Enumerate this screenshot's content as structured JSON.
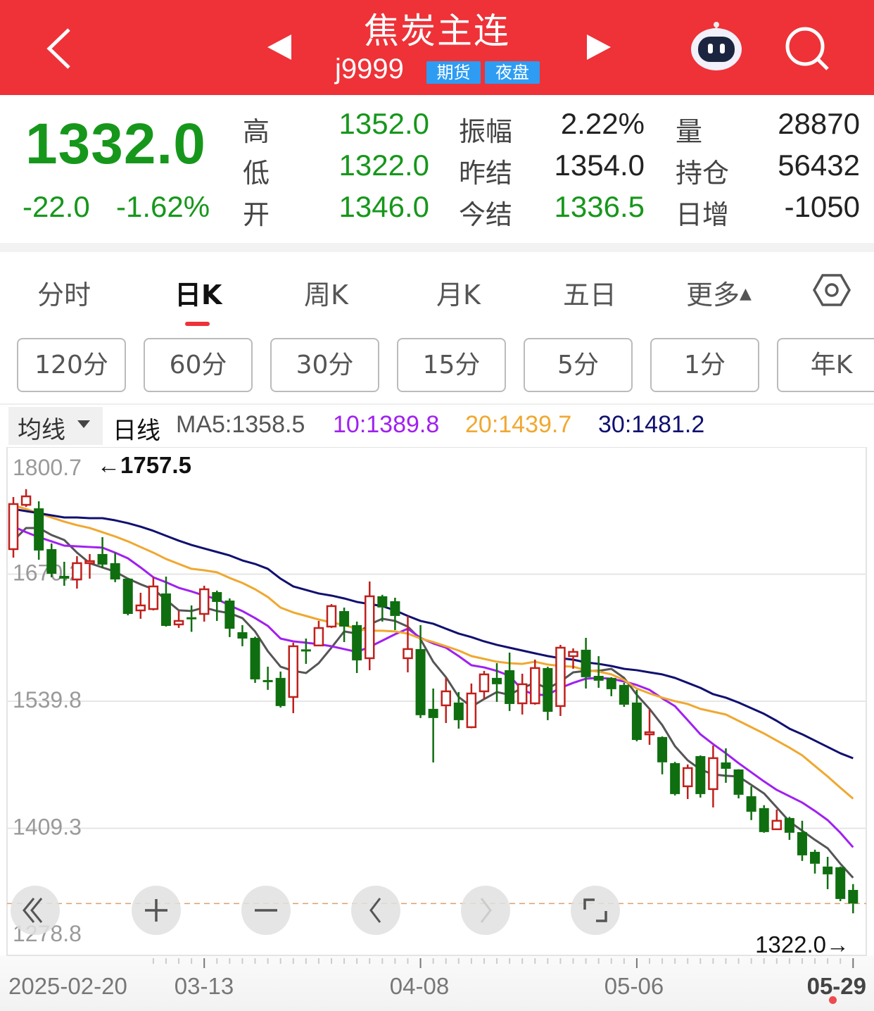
{
  "header": {
    "title": "焦炭主连",
    "code": "j9999",
    "badges": [
      "期货",
      "夜盘"
    ],
    "icons": [
      "back-chevron-icon",
      "prev-contract-icon",
      "next-contract-icon",
      "robot-assistant-icon",
      "search-icon"
    ]
  },
  "quote": {
    "price": "1332.0",
    "change": "-22.0",
    "change_pct": "-1.62%",
    "stats": [
      {
        "label": "高",
        "value": "1352.0",
        "color": "#16971b"
      },
      {
        "label": "低",
        "value": "1322.0",
        "color": "#16971b"
      },
      {
        "label": "开",
        "value": "1346.0",
        "color": "#16971b"
      },
      {
        "label": "振幅",
        "value": "2.22%",
        "color": "#222222"
      },
      {
        "label": "昨结",
        "value": "1354.0",
        "color": "#222222"
      },
      {
        "label": "今结",
        "value": "1336.5",
        "color": "#16971b"
      },
      {
        "label": "量",
        "value": "28870",
        "color": "#222222"
      },
      {
        "label": "持仓",
        "value": "56432",
        "color": "#222222"
      },
      {
        "label": "日增",
        "value": "-1050",
        "color": "#222222"
      }
    ]
  },
  "tabs": {
    "items": [
      "分时",
      "日K",
      "周K",
      "月K",
      "五日",
      "更多"
    ],
    "active": "日K",
    "more_arrow": "▲",
    "accent": "#ee3238"
  },
  "periods": [
    "120分",
    "60分",
    "30分",
    "15分",
    "5分",
    "1分",
    "年K"
  ],
  "ma_bar": {
    "selector": "均线",
    "kline_type": "日线",
    "ma5": "MA5:1358.5",
    "ma10": "10:1389.8",
    "ma20": "20:1439.7",
    "ma30": "30:1481.2",
    "colors": {
      "ma5": "#555555",
      "ma10": "#a020f0",
      "ma20": "#f0a830",
      "ma30": "#101070"
    }
  },
  "controls": [
    "rewind-icon",
    "zoom-in-icon",
    "zoom-out-icon",
    "scroll-left-icon",
    "scroll-right-icon",
    "fullscreen-icon"
  ],
  "chart_data": {
    "type": "candlestick",
    "ylim": [
      1278.8,
      1800.7
    ],
    "y_ticks": [
      "1800.7",
      "1670.2",
      "1539.8",
      "1409.3",
      "1278.8"
    ],
    "x_ticks": [
      "2025-02-20",
      "03-13",
      "04-08",
      "05-06",
      "05-29"
    ],
    "grid": true,
    "high_marker": "←1757.5",
    "low_marker": "1322.0→",
    "last_price": 1332.0,
    "up_color": "#c0201c",
    "down_color": "#0f6e0f",
    "candles_ohlc": [
      [
        1695.9,
        1749.4,
        1687.2,
        1742.2
      ],
      [
        1741.4,
        1757.5,
        1739.3,
        1750.1
      ],
      [
        1737.8,
        1745.0,
        1685.0,
        1694.5
      ],
      [
        1695.9,
        1701.7,
        1667.0,
        1670.6
      ],
      [
        1668.4,
        1682.9,
        1658.3,
        1665.6
      ],
      [
        1664.8,
        1688.7,
        1655.4,
        1681.5
      ],
      [
        1681.5,
        1690.9,
        1665.6,
        1683.6
      ],
      [
        1690.9,
        1708.2,
        1676.4,
        1680.0
      ],
      [
        1681.5,
        1692.3,
        1662.0,
        1664.8
      ],
      [
        1665.6,
        1666.0,
        1628.0,
        1629.4
      ],
      [
        1633.0,
        1651.1,
        1624.4,
        1638.1
      ],
      [
        1634.4,
        1667.0,
        1633.0,
        1657.6
      ],
      [
        1650.4,
        1667.7,
        1616.4,
        1617.1
      ],
      [
        1618.6,
        1632.3,
        1615.0,
        1622.2
      ],
      [
        1626.0,
        1638.1,
        1611.0,
        1624.0
      ],
      [
        1629.4,
        1658.3,
        1621.5,
        1654.7
      ],
      [
        1651.8,
        1653.3,
        1622.2,
        1641.7
      ],
      [
        1643.1,
        1645.3,
        1605.6,
        1614.2
      ],
      [
        1610.6,
        1617.9,
        1596.2,
        1604.1
      ],
      [
        1604.8,
        1606.0,
        1558.6,
        1562.2
      ],
      [
        1561.5,
        1575.2,
        1551.4,
        1559.4
      ],
      [
        1563.7,
        1570.2,
        1533.3,
        1534.8
      ],
      [
        1544.1,
        1599.8,
        1527.5,
        1596.2
      ],
      [
        1593.0,
        1604.1,
        1578.1,
        1591.0
      ],
      [
        1597.0,
        1622.2,
        1596.2,
        1614.9
      ],
      [
        1616.4,
        1639.5,
        1615.0,
        1637.4
      ],
      [
        1632.3,
        1635.9,
        1600.5,
        1616.4
      ],
      [
        1617.9,
        1621.5,
        1568.7,
        1581.7
      ],
      [
        1583.9,
        1662.7,
        1571.6,
        1647.5
      ],
      [
        1647.5,
        1649.0,
        1621.5,
        1636.0
      ],
      [
        1642.4,
        1646.0,
        1612.8,
        1627.3
      ],
      [
        1583.9,
        1627.3,
        1569.4,
        1593.3
      ],
      [
        1593.3,
        1617.9,
        1522.5,
        1525.4
      ],
      [
        1531.9,
        1552.8,
        1476.9,
        1522.5
      ],
      [
        1535.5,
        1563.7,
        1517.4,
        1549.9
      ],
      [
        1538.4,
        1549.2,
        1511.6,
        1520.3
      ],
      [
        1513.1,
        1557.9,
        1512.0,
        1547.7
      ],
      [
        1549.9,
        1570.9,
        1542.0,
        1567.3
      ],
      [
        1563.7,
        1578.8,
        1539.1,
        1557.2
      ],
      [
        1571.6,
        1589.7,
        1529.7,
        1536.9
      ],
      [
        1537.6,
        1568.0,
        1526.1,
        1557.2
      ],
      [
        1537.6,
        1582.5,
        1536.2,
        1573.8
      ],
      [
        1573.8,
        1575.2,
        1520.3,
        1528.9
      ],
      [
        1534.8,
        1597.6,
        1524.6,
        1594.7
      ],
      [
        1586.0,
        1594.0,
        1573.1,
        1590.4
      ],
      [
        1592.6,
        1604.8,
        1552.8,
        1564.4
      ],
      [
        1565.8,
        1586.0,
        1553.5,
        1560.8
      ],
      [
        1563.7,
        1564.4,
        1544.9,
        1552.1
      ],
      [
        1556.5,
        1558.6,
        1534.0,
        1536.2
      ],
      [
        1538.4,
        1551.4,
        1498.6,
        1500.0
      ],
      [
        1505.7,
        1531.1,
        1495.0,
        1507.9
      ],
      [
        1503.0,
        1503.7,
        1464.7,
        1477.0
      ],
      [
        1476.2,
        1477.5,
        1443.0,
        1444.4
      ],
      [
        1452.4,
        1474.8,
        1439.3,
        1471.1
      ],
      [
        1483.4,
        1484.1,
        1440.8,
        1444.4
      ],
      [
        1449.5,
        1494.3,
        1430.7,
        1481.3
      ],
      [
        1476.9,
        1491.4,
        1456.0,
        1470.4
      ],
      [
        1469.7,
        1470.0,
        1440.0,
        1443.7
      ],
      [
        1442.2,
        1452.4,
        1417.7,
        1426.3
      ],
      [
        1430.0,
        1433.0,
        1404.7,
        1405.4
      ],
      [
        1408.3,
        1428.5,
        1407.6,
        1417.0
      ],
      [
        1419.8,
        1421.0,
        1397.4,
        1404.7
      ],
      [
        1405.4,
        1417.0,
        1375.8,
        1381.5
      ],
      [
        1385.1,
        1387.3,
        1362.8,
        1372.9
      ],
      [
        1370.0,
        1380.0,
        1346.8,
        1362.0
      ],
      [
        1369.3,
        1370.0,
        1334.5,
        1336.7
      ],
      [
        1346.0,
        1352.0,
        1322.0,
        1332.0
      ]
    ],
    "series": [
      {
        "name": "MA5",
        "color": "#555555",
        "values": [
          1704.6,
          1717.6,
          1717.6,
          1710.4,
          1705.3,
          1692.3,
          1681.5,
          1677.1,
          1672.8,
          1665.6,
          1659.8,
          1654.8,
          1643.9,
          1633.1,
          1632.4,
          1635.9,
          1632.4,
          1630.1,
          1625.1,
          1611.4,
          1591.1,
          1575.2,
          1570.9,
          1568.7,
          1578.8,
          1594.7,
          1611.4,
          1609.2,
          1618.6,
          1624.4,
          1622.2,
          1616.4,
          1603.4,
          1580.3,
          1564.4,
          1544.1,
          1534,
          1542,
          1549.2,
          1546.3,
          1553.5,
          1558.6,
          1552.8,
          1560,
          1569.4,
          1570.9,
          1570.9,
          1573,
          1563.7,
          1546.3,
          1531.9,
          1515.2,
          1493.6,
          1479.1,
          1469.7,
          1464.6,
          1463.2,
          1462.5,
          1453.8,
          1445.1,
          1430.7,
          1416.2,
          1406.8,
          1397.4,
          1388.8,
          1372.9,
          1358.5
        ]
      },
      {
        "name": "10",
        "color": "#a020f0",
        "values": [
          1719.0,
          1713.3,
          1708.2,
          1703.9,
          1699.5,
          1698.8,
          1698.1,
          1697.4,
          1692.3,
          1686.5,
          1677.1,
          1667.0,
          1661.9,
          1656.2,
          1652.5,
          1648.2,
          1644.6,
          1638.1,
          1632.3,
          1625.1,
          1617.1,
          1604.1,
          1601.2,
          1599.8,
          1598.3,
          1596.2,
          1593.3,
          1590.4,
          1595.5,
          1602.0,
          1608.5,
          1614.2,
          1604.8,
          1599.1,
          1594.7,
          1586.1,
          1576.7,
          1574.5,
          1570.9,
          1565.8,
          1551.4,
          1546.3,
          1546.3,
          1553.5,
          1558.6,
          1562.9,
          1563.7,
          1562.9,
          1560.0,
          1556.4,
          1551.4,
          1542.7,
          1534.7,
          1520.3,
          1505.8,
          1495.7,
          1486.3,
          1476.2,
          1466.8,
          1457.4,
          1448.7,
          1442.2,
          1435.7,
          1427.1,
          1417.7,
          1404.7,
          1389.8
        ]
      },
      {
        "name": "20",
        "color": "#f0a830",
        "values": [
          1740.7,
          1737.1,
          1732.8,
          1728.4,
          1724.1,
          1720.5,
          1717.6,
          1713.3,
          1708.9,
          1703.9,
          1698.1,
          1692.3,
          1685.8,
          1680.7,
          1675.7,
          1674.2,
          1672.1,
          1666.3,
          1661.2,
          1654.7,
          1646.8,
          1635.9,
          1630.9,
          1627.3,
          1623.6,
          1620.7,
          1617.9,
          1614.2,
          1612.1,
          1612.1,
          1611.4,
          1609.2,
          1604.1,
          1600.5,
          1596.2,
          1591.8,
          1586.1,
          1583.2,
          1580.3,
          1578.8,
          1578.1,
          1580.3,
          1577.4,
          1575.9,
          1575.2,
          1571.6,
          1570.2,
          1567.3,
          1561.5,
          1552.8,
          1547.8,
          1543.4,
          1539.8,
          1536.9,
          1531.9,
          1529.0,
          1526.1,
          1519.6,
          1513.1,
          1506.6,
          1499.3,
          1492.1,
          1484.2,
          1473.3,
          1462.5,
          1450.9,
          1439.7
        ]
      },
      {
        "name": "30",
        "color": "#101070",
        "values": [
          1737.1,
          1734.9,
          1732.8,
          1730.6,
          1728.4,
          1728.4,
          1727.7,
          1727.7,
          1725.5,
          1722.6,
          1719.0,
          1714.7,
          1709.6,
          1704.6,
          1700.2,
          1696.6,
          1693.0,
          1689.4,
          1684.3,
          1680.7,
          1675.7,
          1665.6,
          1657.6,
          1654.0,
          1650.4,
          1648.2,
          1645.3,
          1641.7,
          1639.5,
          1637.4,
          1633.0,
          1627.3,
          1622.2,
          1619.3,
          1614.2,
          1609.2,
          1605.6,
          1601.2,
          1597.6,
          1594.7,
          1591.8,
          1588.9,
          1586.1,
          1583.9,
          1582.4,
          1579.6,
          1578.1,
          1575.9,
          1573.0,
          1571.6,
          1569.4,
          1567.3,
          1563.7,
          1558.6,
          1553.5,
          1547.0,
          1543.4,
          1538.4,
          1532.6,
          1526.8,
          1519.6,
          1511.6,
          1505.8,
          1499.3,
          1492.8,
          1486.3,
          1481.2
        ]
      }
    ]
  }
}
